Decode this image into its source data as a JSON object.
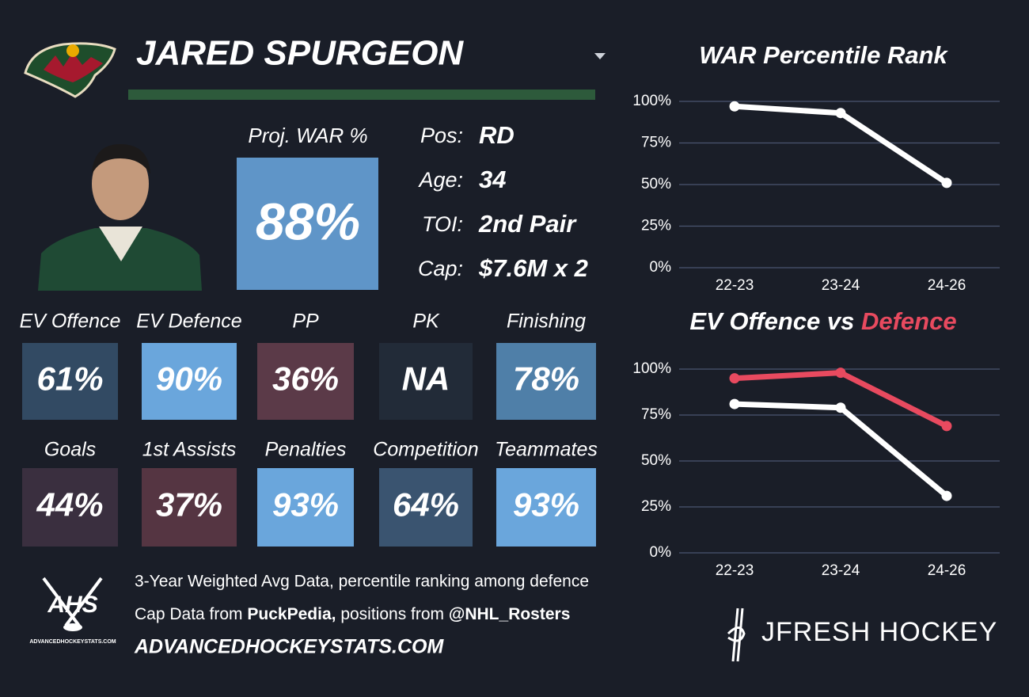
{
  "header": {
    "name": "JARED SPURGEON"
  },
  "headline": {
    "label": "Proj. WAR %",
    "value": "88%",
    "color": "#5f95c8"
  },
  "info": [
    {
      "label": "Pos:",
      "value": "RD"
    },
    {
      "label": "Age:",
      "value": "34"
    },
    {
      "label": "TOI:",
      "value": "2nd Pair"
    },
    {
      "label": "Cap:",
      "value": "$7.6M x 2"
    }
  ],
  "tiles": [
    {
      "label": "EV Offence",
      "value": "61%",
      "color": "#324a63"
    },
    {
      "label": "EV Defence",
      "value": "90%",
      "color": "#6aa6dc"
    },
    {
      "label": "PP",
      "value": "36%",
      "color": "#5b3a48"
    },
    {
      "label": "PK",
      "value": "NA",
      "color": "#222b38"
    },
    {
      "label": "Finishing",
      "value": "78%",
      "color": "#4f7fa8"
    },
    {
      "label": "Goals",
      "value": "44%",
      "color": "#3a2f3f"
    },
    {
      "label": "1st Assists",
      "value": "37%",
      "color": "#553542"
    },
    {
      "label": "Penalties",
      "value": "93%",
      "color": "#6aa6dc"
    },
    {
      "label": "Competition",
      "value": "64%",
      "color": "#3a5470"
    },
    {
      "label": "Teammates",
      "value": "93%",
      "color": "#6aa6dc"
    }
  ],
  "footer": {
    "note": "3-Year Weighted Avg Data, percentile ranking among defence",
    "source_parts": [
      "Cap Data from",
      "PuckPedia,",
      "positions from",
      "@NHL_Rosters"
    ],
    "site": "ADVANCEDHOCKEYSTATS.COM",
    "logo_text": "AHS",
    "logo_caption": "ADVANCEDHOCKEYSTATS.COM",
    "brand": "JFRESH HOCKEY"
  },
  "chart_data": [
    {
      "type": "line",
      "title": "WAR Percentile Rank",
      "categories": [
        "22-23",
        "23-24",
        "24-26"
      ],
      "series": [
        {
          "color": "#ffffff",
          "values": [
            97,
            93,
            51
          ]
        }
      ],
      "ylim": [
        0,
        100
      ],
      "yticks": [
        {
          "value": 0,
          "label": "0%"
        },
        {
          "value": 25,
          "label": "25%"
        },
        {
          "value": 50,
          "label": "50%"
        },
        {
          "value": 75,
          "label": "75%"
        },
        {
          "value": 100,
          "label": "100%"
        }
      ],
      "grid": true
    },
    {
      "type": "line",
      "title_joiner": "vs",
      "categories": [
        "22-23",
        "23-24",
        "24-26"
      ],
      "series": [
        {
          "name": "EV Offence",
          "color": "#ffffff",
          "values": [
            81,
            79,
            31
          ]
        },
        {
          "name": "Defence",
          "color": "#e84a5f",
          "values": [
            95,
            98,
            69
          ]
        }
      ],
      "ylim": [
        0,
        100
      ],
      "yticks": [
        {
          "value": 0,
          "label": "0%"
        },
        {
          "value": 25,
          "label": "25%"
        },
        {
          "value": 50,
          "label": "50%"
        },
        {
          "value": 75,
          "label": "75%"
        },
        {
          "value": 100,
          "label": "100%"
        }
      ],
      "grid": true
    }
  ]
}
